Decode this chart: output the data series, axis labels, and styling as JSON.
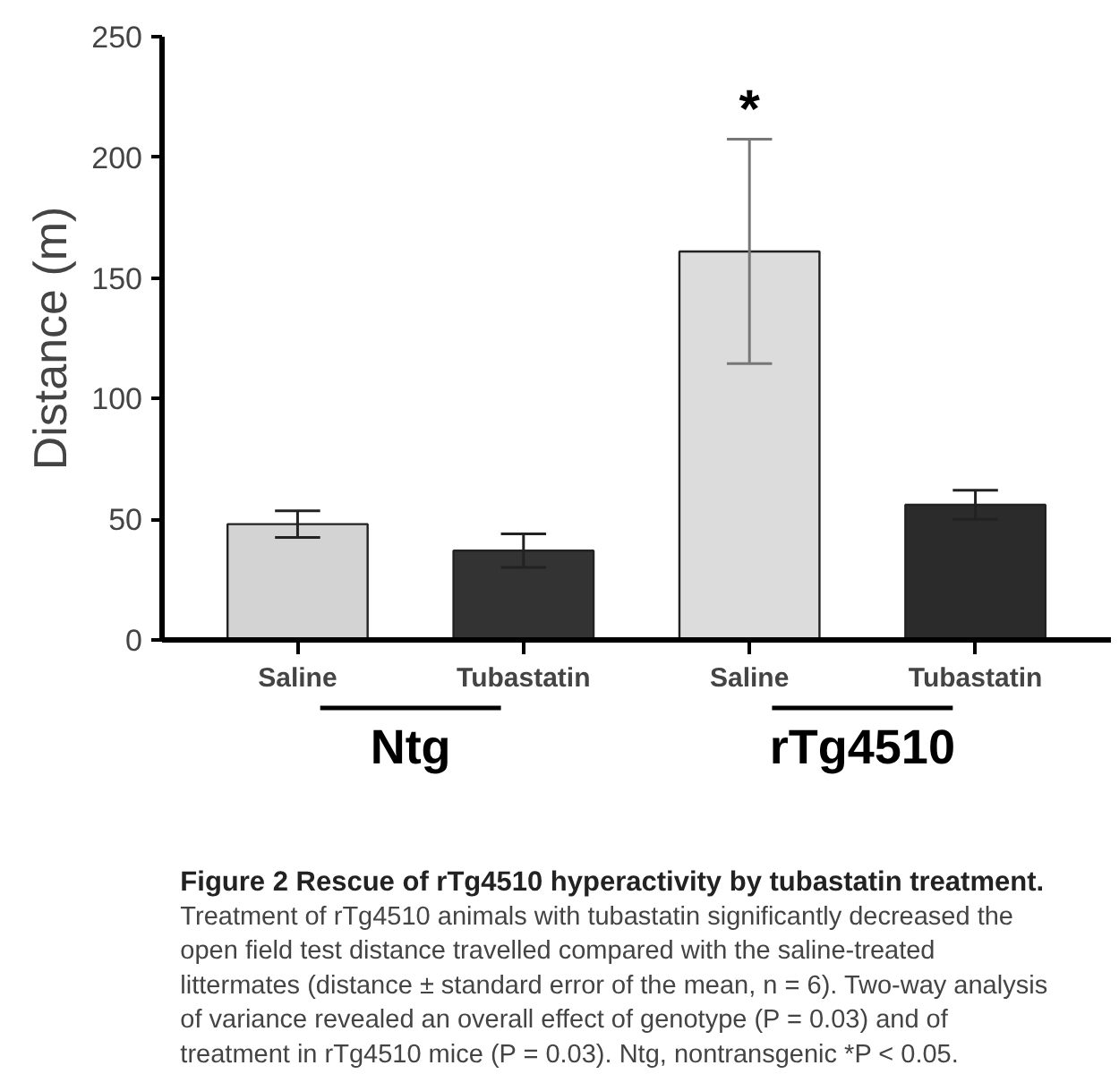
{
  "chart_data": {
    "type": "bar",
    "title": "Figure 2 Rescue of rTg4510 hyperactivity by tubastatin treatment.",
    "ylabel": "Distance (m)",
    "categories": [
      "Saline",
      "Tubastatin",
      "Saline",
      "Tubastatin"
    ],
    "values": [
      48,
      37,
      161,
      56
    ],
    "errors": [
      5.5,
      7,
      46.5,
      6
    ],
    "colors": [
      "#d3d3d3",
      "#333333",
      "#dcdcdc",
      "#2b2b2b"
    ],
    "ylim": [
      0,
      250
    ],
    "yticks": [
      0,
      50,
      100,
      150,
      200,
      250
    ],
    "grid": false,
    "annotations": [
      "*",
      "Ntg",
      "rTg4510",
      "Treatment of rTg4510 animals with tubastatin significantly decreased the open field test distance travelled compared with the saline-treated littermates (distance ± standard error of the mean, n = 6). Two-way analysis of variance revealed an overall effect of genotype (P = 0.03) and of treatment in rTg4510 mice (P = 0.03). Ntg, nontransgenic *P < 0.05."
    ]
  }
}
